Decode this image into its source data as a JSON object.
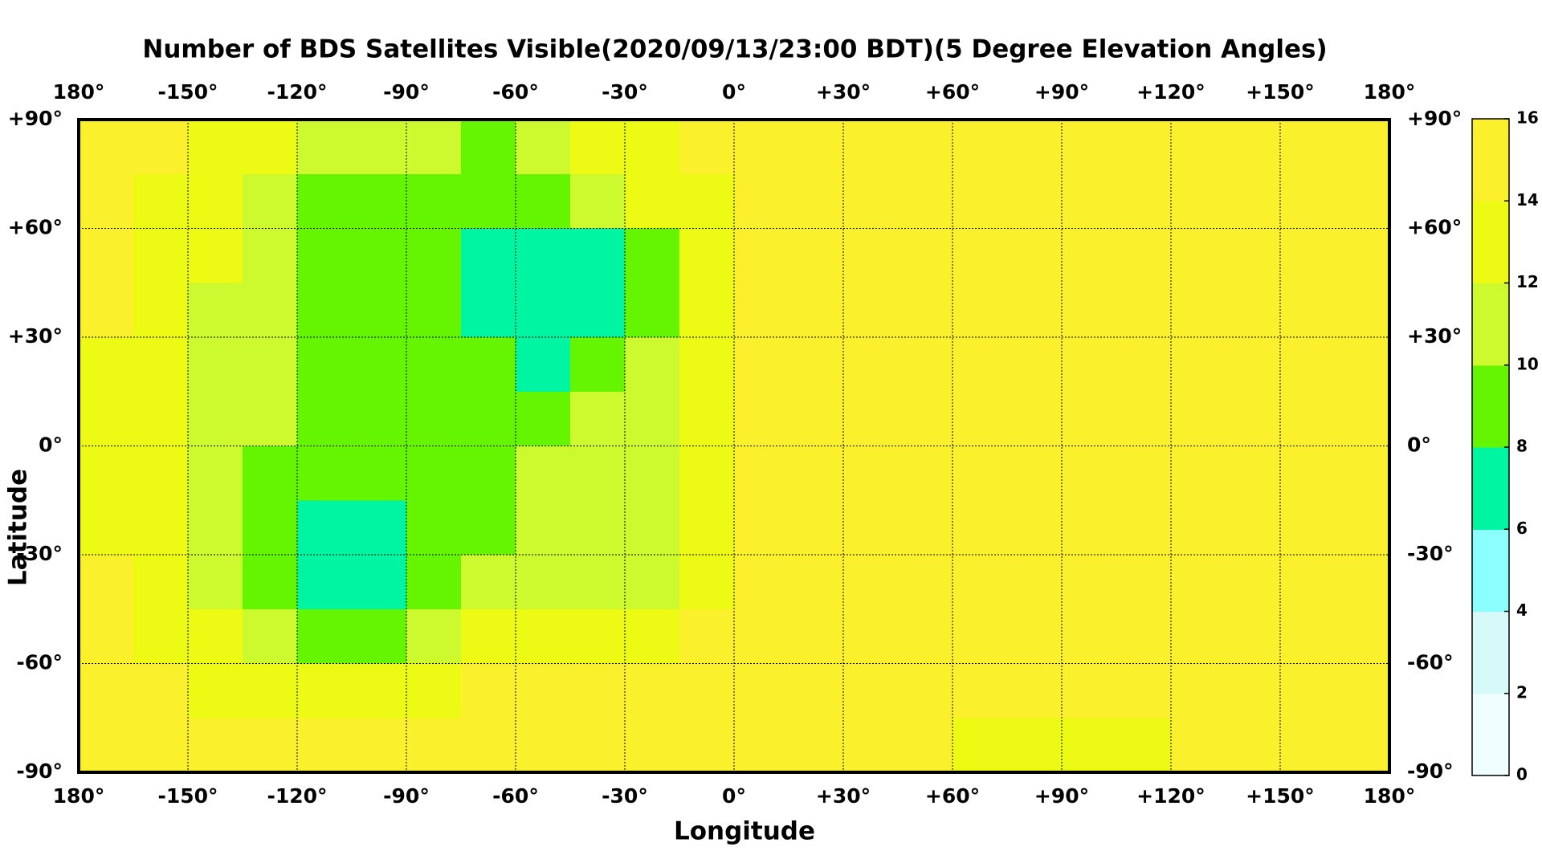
{
  "chart_data": {
    "type": "heatmap",
    "title": "Number of BDS Satellites Visible(2020/09/13/23:00 BDT)(5 Degree Elevation Angles)",
    "x_label": "Longitude",
    "y_label": "Latitude",
    "xlim": [
      -180,
      180
    ],
    "ylim": [
      -90,
      90
    ],
    "xticks": [
      {
        "value": -180,
        "label": "180°"
      },
      {
        "value": -150,
        "label": "-150°"
      },
      {
        "value": -120,
        "label": "-120°"
      },
      {
        "value": -90,
        "label": "-90°"
      },
      {
        "value": -60,
        "label": "-60°"
      },
      {
        "value": -30,
        "label": "-30°"
      },
      {
        "value": 0,
        "label": "0°"
      },
      {
        "value": 30,
        "label": "+30°"
      },
      {
        "value": 60,
        "label": "+60°"
      },
      {
        "value": 90,
        "label": "+90°"
      },
      {
        "value": 120,
        "label": "+120°"
      },
      {
        "value": 150,
        "label": "+150°"
      },
      {
        "value": 180,
        "label": "180°"
      }
    ],
    "yticks": [
      {
        "value": -90,
        "label": "-90°"
      },
      {
        "value": -60,
        "label": "-60°"
      },
      {
        "value": -30,
        "label": "-30°"
      },
      {
        "value": 0,
        "label": "0°"
      },
      {
        "value": 30,
        "label": "+30°"
      },
      {
        "value": 60,
        "label": "+60°"
      },
      {
        "value": 90,
        "label": "+90°"
      }
    ],
    "grid": true,
    "clim": [
      0,
      16
    ],
    "cticks": [
      0,
      2,
      4,
      6,
      8,
      10,
      12,
      14,
      16
    ],
    "colors": [
      "#effefe",
      "#d6fafa",
      "#8cffff",
      "#00f5a3",
      "#66f500",
      "#ccfa2e",
      "#ecfa14",
      "#fbf02c"
    ],
    "z": [
      [
        15,
        15,
        13,
        13,
        11,
        11,
        11,
        9,
        11,
        13,
        13,
        15,
        15,
        15,
        15,
        15,
        15,
        15,
        15,
        15,
        15,
        15,
        15,
        15
      ],
      [
        15,
        13,
        13,
        11,
        9,
        9,
        9,
        9,
        9,
        11,
        13,
        13,
        15,
        15,
        15,
        15,
        15,
        15,
        15,
        15,
        15,
        15,
        15,
        15
      ],
      [
        15,
        13,
        13,
        11,
        9,
        9,
        9,
        7,
        7,
        7,
        9,
        13,
        15,
        15,
        15,
        15,
        15,
        15,
        15,
        15,
        15,
        15,
        15,
        15
      ],
      [
        15,
        13,
        11,
        11,
        9,
        9,
        9,
        7,
        7,
        7,
        9,
        13,
        15,
        15,
        15,
        15,
        15,
        15,
        15,
        15,
        15,
        15,
        15,
        15
      ],
      [
        13,
        13,
        11,
        11,
        9,
        9,
        9,
        9,
        7,
        9,
        11,
        13,
        15,
        15,
        15,
        15,
        15,
        15,
        15,
        15,
        15,
        15,
        15,
        15
      ],
      [
        13,
        13,
        11,
        11,
        9,
        9,
        9,
        9,
        9,
        11,
        11,
        13,
        15,
        15,
        15,
        15,
        15,
        15,
        15,
        15,
        15,
        15,
        15,
        15
      ],
      [
        13,
        13,
        11,
        9,
        9,
        9,
        9,
        9,
        11,
        11,
        11,
        13,
        15,
        15,
        15,
        15,
        15,
        15,
        15,
        15,
        15,
        15,
        15,
        15
      ],
      [
        13,
        13,
        11,
        9,
        7,
        7,
        9,
        9,
        11,
        11,
        11,
        13,
        15,
        15,
        15,
        15,
        15,
        15,
        15,
        15,
        15,
        15,
        15,
        15
      ],
      [
        15,
        13,
        11,
        9,
        7,
        7,
        9,
        11,
        11,
        11,
        11,
        13,
        15,
        15,
        15,
        15,
        15,
        15,
        15,
        15,
        15,
        15,
        15,
        15
      ],
      [
        15,
        13,
        13,
        11,
        9,
        9,
        11,
        13,
        13,
        13,
        13,
        15,
        15,
        15,
        15,
        15,
        15,
        15,
        15,
        15,
        15,
        15,
        15,
        15
      ],
      [
        15,
        15,
        13,
        13,
        13,
        13,
        13,
        15,
        15,
        15,
        15,
        15,
        15,
        15,
        15,
        15,
        15,
        15,
        15,
        15,
        15,
        15,
        15,
        15
      ],
      [
        15,
        15,
        15,
        15,
        15,
        15,
        15,
        15,
        15,
        15,
        15,
        15,
        15,
        15,
        15,
        15,
        13,
        13,
        13,
        13,
        15,
        15,
        15,
        15
      ]
    ]
  }
}
